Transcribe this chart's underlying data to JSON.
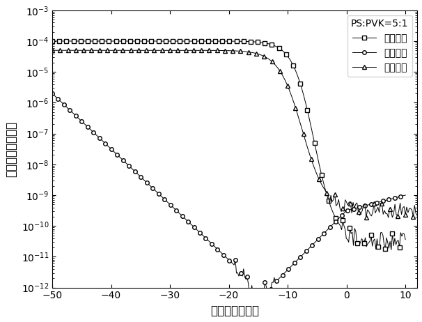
{
  "xlabel": "栏电压（伏特）",
  "ylabel": "源漏电流（安培）",
  "legend_title": "PS:PVK=5:1",
  "legend_labels": [
    "初始状态",
    "编程状态",
    "擦除状态"
  ],
  "xlim": [
    -50,
    12
  ],
  "ylim_log": [
    -12,
    -3
  ],
  "xticks": [
    -50,
    -40,
    -30,
    -20,
    -10,
    0,
    10
  ],
  "marker_size": 4,
  "font_size": 13,
  "label_font_size": 12
}
